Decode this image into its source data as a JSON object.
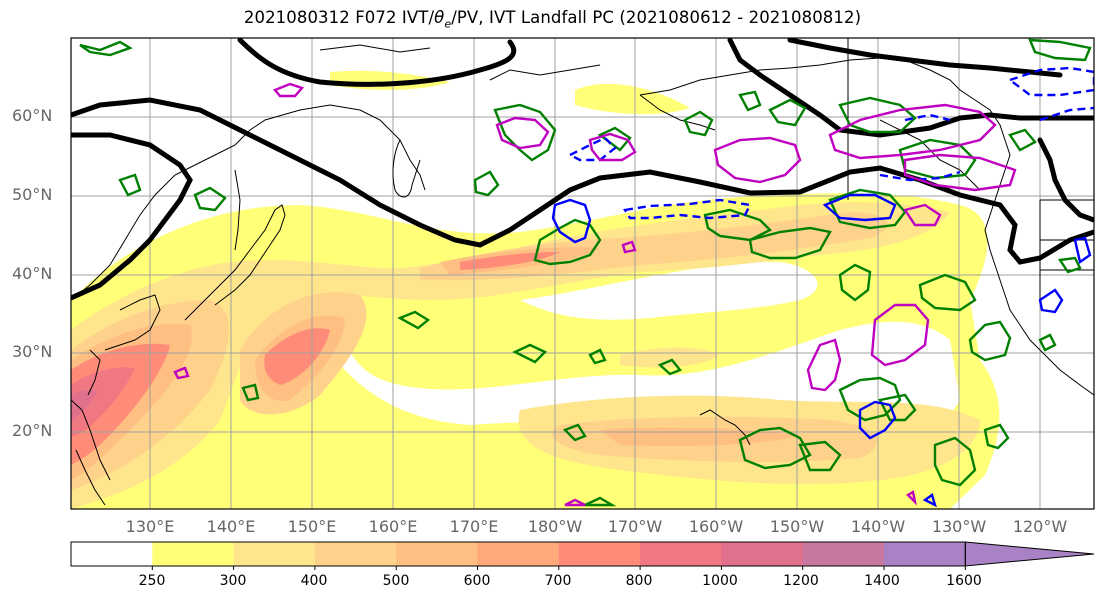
{
  "title_prefix": "2021080312 F072 IVT/",
  "title_theta": "θ",
  "title_sub": "e",
  "title_suffix": "/PV, IVT Landfall PC (2021080612 - 2021080812)",
  "lat_labels": [
    "60°N",
    "50°N",
    "40°N",
    "30°N",
    "20°N"
  ],
  "lon_labels": [
    "130°E",
    "140°E",
    "150°E",
    "160°E",
    "170°E",
    "180°W",
    "170°W",
    "160°W",
    "150°W",
    "140°W",
    "130°W",
    "120°W"
  ],
  "colorbar": {
    "levels": [
      "250",
      "300",
      "400",
      "500",
      "600",
      "700",
      "800",
      "1000",
      "1200",
      "1400",
      "1600"
    ],
    "colors": [
      "#ffffff",
      "#ffff78",
      "#ffe68c",
      "#ffd28c",
      "#ffbe82",
      "#ffaa7a",
      "#ff8c78",
      "#f07882",
      "#e0708c",
      "#c878a0",
      "#a882c4"
    ]
  },
  "colors": {
    "pv_contour": "#000000",
    "theta_e_positive": "#008000",
    "theta_e_negative": "#0000ff",
    "magenta": "#c000c0"
  }
}
